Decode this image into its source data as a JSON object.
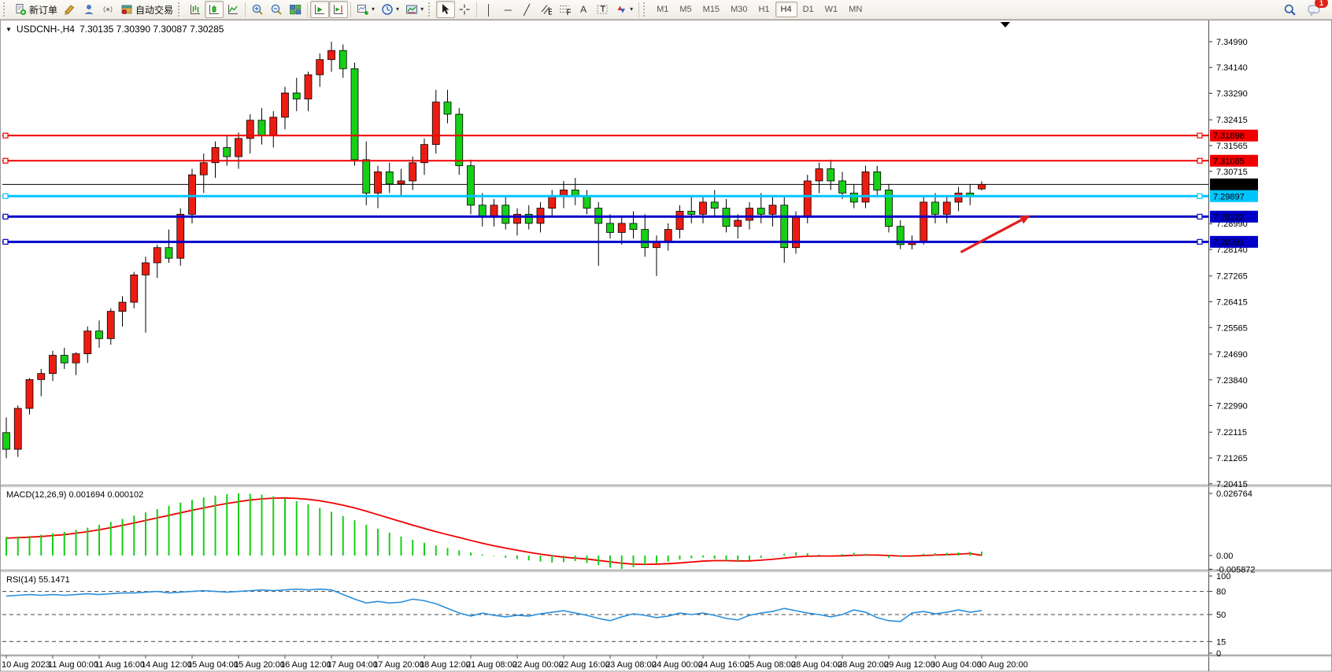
{
  "toolbar": {
    "new_order_label": "新订单",
    "auto_trading_label": "自动交易",
    "timeframes": [
      "M1",
      "M5",
      "M15",
      "M30",
      "H1",
      "H4",
      "D1",
      "W1",
      "MN"
    ],
    "active_timeframe": "H4",
    "notification_count": "1"
  },
  "chart": {
    "symbol_period": "USDCNH-,H4",
    "ohlc_line": "7.30135 7.30390 7.30087 7.30285"
  },
  "chart_data": [
    {
      "type": "candlestick",
      "title": "USDCNH-,H4",
      "timeframe": "H4",
      "up_color": "#ed1c12",
      "down_color": "#17cf17",
      "ylim": [
        7.20383,
        7.35249
      ],
      "y_ticks": [
        "7.34990",
        "7.34140",
        "7.33290",
        "7.32415",
        "7.31565",
        "7.30715",
        "7.28990",
        "7.28140",
        "7.27265",
        "7.26415",
        "7.25565",
        "7.24690",
        "7.23840",
        "7.22990",
        "7.22115",
        "7.21265",
        "7.20415"
      ],
      "x_labels": [
        "10 Aug 2023",
        "11 Aug 00:00",
        "11 Aug 16:00",
        "14 Aug 12:00",
        "15 Aug 04:00",
        "15 Aug 20:00",
        "16 Aug 12:00",
        "17 Aug 04:00",
        "17 Aug 20:00",
        "18 Aug 12:00",
        "21 Aug 08:00",
        "22 Aug 00:00",
        "22 Aug 16:00",
        "23 Aug 08:00",
        "24 Aug 00:00",
        "24 Aug 16:00",
        "25 Aug 08:00",
        "28 Aug 04:00",
        "28 Aug 20:00",
        "29 Aug 12:00",
        "30 Aug 04:00",
        "30 Aug 20:00"
      ],
      "candles": [
        [
          7.221,
          7.226,
          7.2126,
          7.2155
        ],
        [
          7.2155,
          7.23,
          7.213,
          7.229
        ],
        [
          7.229,
          7.239,
          7.227,
          7.2385
        ],
        [
          7.2385,
          7.242,
          7.233,
          7.2405
        ],
        [
          7.2405,
          7.248,
          7.238,
          7.2465
        ],
        [
          7.2465,
          7.249,
          7.242,
          7.244
        ],
        [
          7.244,
          7.2475,
          7.24,
          7.247
        ],
        [
          7.247,
          7.256,
          7.244,
          7.2545
        ],
        [
          7.2545,
          7.258,
          7.249,
          7.252
        ],
        [
          7.252,
          7.262,
          7.25,
          7.261
        ],
        [
          7.261,
          7.266,
          7.256,
          7.264
        ],
        [
          7.264,
          7.274,
          7.262,
          7.273
        ],
        [
          7.273,
          7.279,
          7.254,
          7.277
        ],
        [
          7.277,
          7.283,
          7.272,
          7.282
        ],
        [
          7.282,
          7.288,
          7.277,
          7.2785
        ],
        [
          7.2785,
          7.295,
          7.276,
          7.293
        ],
        [
          7.293,
          7.308,
          7.29,
          7.306
        ],
        [
          7.306,
          7.313,
          7.3,
          7.31
        ],
        [
          7.31,
          7.317,
          7.305,
          7.315
        ],
        [
          7.315,
          7.319,
          7.309,
          7.312
        ],
        [
          7.312,
          7.32,
          7.308,
          7.318
        ],
        [
          7.318,
          7.326,
          7.313,
          7.324
        ],
        [
          7.324,
          7.328,
          7.316,
          7.319
        ],
        [
          7.319,
          7.327,
          7.315,
          7.325
        ],
        [
          7.325,
          7.335,
          7.321,
          7.333
        ],
        [
          7.333,
          7.338,
          7.327,
          7.331
        ],
        [
          7.331,
          7.34,
          7.327,
          7.339
        ],
        [
          7.339,
          7.346,
          7.335,
          7.344
        ],
        [
          7.344,
          7.3499,
          7.34,
          7.347
        ],
        [
          7.347,
          7.349,
          7.338,
          7.341
        ],
        [
          7.341,
          7.343,
          7.309,
          7.311
        ],
        [
          7.311,
          7.317,
          7.296,
          7.3
        ],
        [
          7.3,
          7.309,
          7.295,
          7.307
        ],
        [
          7.307,
          7.31,
          7.3,
          7.303
        ],
        [
          7.303,
          7.308,
          7.299,
          7.304
        ],
        [
          7.304,
          7.312,
          7.301,
          7.31
        ],
        [
          7.31,
          7.318,
          7.306,
          7.316
        ],
        [
          7.316,
          7.334,
          7.313,
          7.33
        ],
        [
          7.33,
          7.334,
          7.323,
          7.326
        ],
        [
          7.326,
          7.328,
          7.306,
          7.309
        ],
        [
          7.309,
          7.311,
          7.293,
          7.296
        ],
        [
          7.296,
          7.3,
          7.289,
          7.292
        ],
        [
          7.292,
          7.298,
          7.289,
          7.296
        ],
        [
          7.296,
          7.299,
          7.288,
          7.29
        ],
        [
          7.29,
          7.295,
          7.286,
          7.293
        ],
        [
          7.293,
          7.296,
          7.288,
          7.29
        ],
        [
          7.29,
          7.297,
          7.287,
          7.295
        ],
        [
          7.295,
          7.301,
          7.292,
          7.299
        ],
        [
          7.299,
          7.304,
          7.295,
          7.301
        ],
        [
          7.301,
          7.305,
          7.296,
          7.299
        ],
        [
          7.299,
          7.301,
          7.293,
          7.295
        ],
        [
          7.295,
          7.297,
          7.276,
          7.29
        ],
        [
          7.29,
          7.293,
          7.285,
          7.287
        ],
        [
          7.287,
          7.292,
          7.283,
          7.29
        ],
        [
          7.29,
          7.294,
          7.285,
          7.288
        ],
        [
          7.288,
          7.293,
          7.279,
          7.282
        ],
        [
          7.282,
          7.286,
          7.2726,
          7.284
        ],
        [
          7.284,
          7.29,
          7.281,
          7.288
        ],
        [
          7.288,
          7.296,
          7.285,
          7.294
        ],
        [
          7.294,
          7.299,
          7.29,
          7.293
        ],
        [
          7.293,
          7.299,
          7.29,
          7.297
        ],
        [
          7.297,
          7.301,
          7.292,
          7.295
        ],
        [
          7.295,
          7.298,
          7.287,
          7.289
        ],
        [
          7.289,
          7.293,
          7.285,
          7.291
        ],
        [
          7.291,
          7.297,
          7.288,
          7.295
        ],
        [
          7.295,
          7.3,
          7.29,
          7.293
        ],
        [
          7.293,
          7.299,
          7.289,
          7.296
        ],
        [
          7.296,
          7.299,
          7.277,
          7.282
        ],
        [
          7.282,
          7.294,
          7.28,
          7.292
        ],
        [
          7.292,
          7.306,
          7.29,
          7.304
        ],
        [
          7.304,
          7.31,
          7.3,
          7.308
        ],
        [
          7.308,
          7.311,
          7.301,
          7.304
        ],
        [
          7.304,
          7.307,
          7.298,
          7.3
        ],
        [
          7.3,
          7.303,
          7.295,
          7.297
        ],
        [
          7.297,
          7.309,
          7.295,
          7.307
        ],
        [
          7.307,
          7.309,
          7.299,
          7.301
        ],
        [
          7.301,
          7.303,
          7.287,
          7.289
        ],
        [
          7.289,
          7.291,
          7.2815,
          7.283
        ],
        [
          7.283,
          7.286,
          7.2814,
          7.284
        ],
        [
          7.284,
          7.299,
          7.283,
          7.297
        ],
        [
          7.297,
          7.3,
          7.29,
          7.293
        ],
        [
          7.293,
          7.299,
          7.29,
          7.297
        ],
        [
          7.297,
          7.302,
          7.294,
          7.3
        ],
        [
          7.3,
          7.303,
          7.296,
          7.299
        ],
        [
          7.30135,
          7.3039,
          7.30087,
          7.30285
        ]
      ],
      "hlines": [
        {
          "price": 7.31896,
          "label": "7.31896",
          "color": "#f00000",
          "chip_text": "#ffffff",
          "width": 2,
          "role": "resistance"
        },
        {
          "price": 7.31065,
          "label": "7.31065",
          "color": "#f00000",
          "chip_text": "#ffffff",
          "width": 2,
          "role": "resistance"
        },
        {
          "price": 7.30285,
          "label": "7.30285",
          "color": "#000000",
          "chip_text": "#ffffff",
          "width": 1,
          "role": "current-price"
        },
        {
          "price": 7.29897,
          "label": "7.29897",
          "color": "#00c5ff",
          "chip_text": "#000000",
          "width": 3,
          "role": "support"
        },
        {
          "price": 7.29222,
          "label": "7.29222",
          "color": "#0000c8",
          "chip_text": "#ffffff",
          "width": 3,
          "role": "support"
        },
        {
          "price": 7.28391,
          "label": "7.28391",
          "color": "#0000c8",
          "chip_text": "#ffffff",
          "width": 3,
          "role": "support"
        }
      ],
      "annotation": {
        "type": "arrow",
        "color": "#df1f1f",
        "tail": {
          "bar": 82.2,
          "price": 7.2805
        },
        "tip": {
          "bar": 88.2,
          "price": 7.2927
        },
        "direction": "up-right"
      }
    },
    {
      "type": "bar",
      "name": "MACD",
      "label": "MACD(12,26,9) 0.001694 0.000102",
      "params": "12,26,9",
      "main_value": "0.001694",
      "signal_value": "0.000102",
      "histogram_color": "#17cf17",
      "signal_color": "#f00000",
      "ylim": [
        -0.005872,
        0.026764
      ],
      "y_ticks": [
        "0.026764",
        "0.00",
        "-0.005872"
      ],
      "histogram": [
        0.008,
        0.0082,
        0.0085,
        0.009,
        0.0096,
        0.0102,
        0.011,
        0.012,
        0.0132,
        0.0145,
        0.0158,
        0.0172,
        0.0186,
        0.02,
        0.0214,
        0.0228,
        0.024,
        0.025,
        0.0258,
        0.0264,
        0.0268,
        0.0266,
        0.0262,
        0.0255,
        0.0246,
        0.0234,
        0.022,
        0.0205,
        0.0188,
        0.017,
        0.0152,
        0.0133,
        0.0115,
        0.0098,
        0.0082,
        0.0068,
        0.0055,
        0.0043,
        0.0032,
        0.0022,
        0.0013,
        0.0005,
        -0.0002,
        -0.0009,
        -0.0015,
        -0.0021,
        -0.0026,
        -0.003,
        -0.0028,
        -0.0024,
        -0.0032,
        -0.0042,
        -0.0052,
        -0.0058,
        -0.005,
        -0.004,
        -0.0032,
        -0.0026,
        -0.0018,
        -0.0012,
        -0.0008,
        -0.0014,
        -0.0022,
        -0.0028,
        -0.002,
        -0.001,
        -0.0002,
        0.0008,
        0.0014,
        0.001,
        0.0004,
        0.0,
        0.0006,
        0.0012,
        0.0008,
        -0.0002,
        -0.001,
        -0.0006,
        0.0002,
        0.0008,
        0.001,
        0.0012,
        0.0014,
        0.0016,
        0.001694
      ],
      "signal": [
        0.0075,
        0.0077,
        0.0079,
        0.0082,
        0.0086,
        0.009,
        0.0096,
        0.0103,
        0.0111,
        0.012,
        0.013,
        0.014,
        0.0151,
        0.0162,
        0.0173,
        0.0184,
        0.0195,
        0.0205,
        0.0215,
        0.0224,
        0.0232,
        0.0239,
        0.0244,
        0.0247,
        0.0248,
        0.0246,
        0.0242,
        0.0236,
        0.0227,
        0.0217,
        0.0205,
        0.0191,
        0.0176,
        0.0161,
        0.0146,
        0.0131,
        0.0117,
        0.0103,
        0.009,
        0.0078,
        0.0065,
        0.0053,
        0.0042,
        0.0032,
        0.0023,
        0.0014,
        0.0006,
        -0.0001,
        -0.0007,
        -0.0011,
        -0.0015,
        -0.0021,
        -0.0027,
        -0.0033,
        -0.0037,
        -0.0038,
        -0.0037,
        -0.0035,
        -0.0032,
        -0.0028,
        -0.0024,
        -0.0022,
        -0.0022,
        -0.0023,
        -0.0023,
        -0.002,
        -0.0016,
        -0.0011,
        -0.0006,
        -0.0003,
        -0.0002,
        -0.0002,
        -0.0001,
        0.0001,
        0.0002,
        0.0002,
        0.0,
        -0.0002,
        -0.0002,
        0.0,
        0.0002,
        0.0004,
        0.0006,
        0.0009,
        0.000102
      ]
    },
    {
      "type": "line",
      "name": "RSI",
      "label": "RSI(14) 55.1471",
      "value": "55.1471",
      "line_color": "#2a8fdd",
      "levels": [
        80,
        50,
        15
      ],
      "ylim": [
        0,
        100
      ],
      "y_ticks": [
        "100",
        "80",
        "50",
        "15",
        "0"
      ],
      "values": [
        74,
        75,
        76,
        75,
        76,
        75,
        76,
        77,
        76,
        77,
        78,
        78,
        79,
        80,
        78,
        79,
        80,
        81,
        80,
        79,
        80,
        81,
        82,
        81,
        82,
        83,
        82,
        83,
        82,
        76,
        70,
        65,
        67,
        65,
        66,
        70,
        68,
        64,
        58,
        52,
        48,
        52,
        49,
        47,
        49,
        48,
        51,
        53,
        55,
        52,
        49,
        45,
        42,
        47,
        51,
        49,
        46,
        48,
        52,
        50,
        52,
        49,
        45,
        43,
        49,
        52,
        54,
        58,
        55,
        52,
        50,
        47,
        50,
        56,
        53,
        46,
        42,
        41,
        52,
        54,
        51,
        53,
        56,
        53,
        55.1471
      ]
    }
  ]
}
